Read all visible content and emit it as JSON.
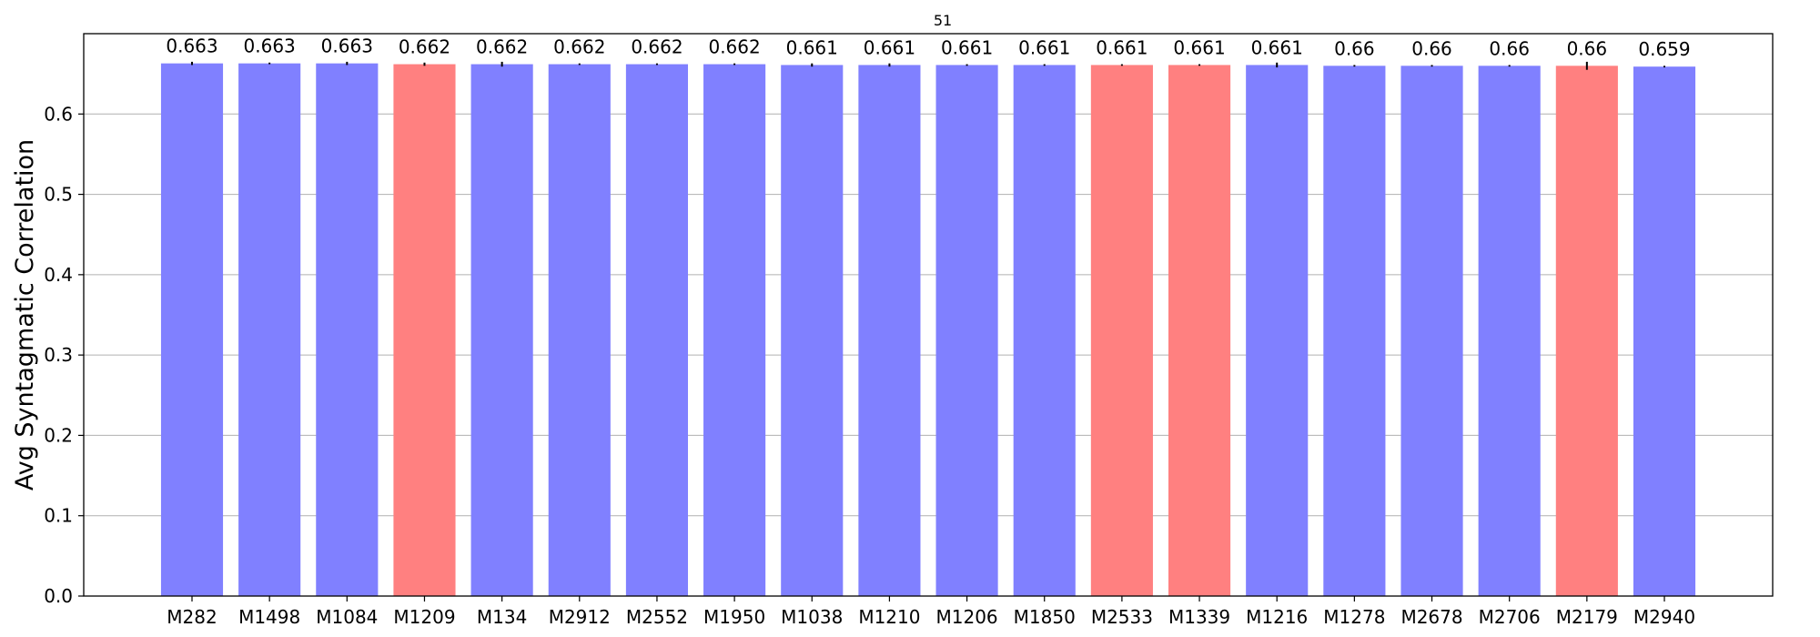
{
  "chart_data": {
    "type": "bar",
    "title": "51",
    "xlabel": "",
    "ylabel": "Avg Syntagmatic Correlation",
    "ylim": [
      0,
      0.7
    ],
    "yticks": [
      "0.0",
      "0.1",
      "0.2",
      "0.3",
      "0.4",
      "0.5",
      "0.6"
    ],
    "grid": "horizontal",
    "colors": {
      "blue": "#8080ff",
      "red": "#ff8080"
    },
    "categories": [
      "M282",
      "M1498",
      "M1084",
      "M1209",
      "M134",
      "M2912",
      "M2552",
      "M1950",
      "M1038",
      "M1210",
      "M1206",
      "M1850",
      "M2533",
      "M1339",
      "M1216",
      "M1278",
      "M2678",
      "M2706",
      "M2179",
      "M2940"
    ],
    "values": [
      0.663,
      0.663,
      0.663,
      0.662,
      0.662,
      0.662,
      0.662,
      0.662,
      0.661,
      0.661,
      0.661,
      0.661,
      0.661,
      0.661,
      0.661,
      0.66,
      0.66,
      0.66,
      0.66,
      0.659
    ],
    "value_labels": [
      "0.663",
      "0.663",
      "0.663",
      "0.662",
      "0.662",
      "0.662",
      "0.662",
      "0.662",
      "0.661",
      "0.661",
      "0.661",
      "0.661",
      "0.661",
      "0.661",
      "0.661",
      "0.66",
      "0.66",
      "0.66",
      "0.66",
      "0.659"
    ],
    "bar_colors": [
      "blue",
      "blue",
      "blue",
      "red",
      "blue",
      "blue",
      "blue",
      "blue",
      "blue",
      "blue",
      "blue",
      "blue",
      "red",
      "red",
      "blue",
      "blue",
      "blue",
      "blue",
      "red",
      "blue"
    ],
    "errors": [
      0.002,
      0.001,
      0.002,
      0.002,
      0.003,
      0.001,
      0.001,
      0.001,
      0.002,
      0.002,
      0.001,
      0.001,
      0.001,
      0.001,
      0.003,
      0.001,
      0.001,
      0.001,
      0.005,
      0.001
    ]
  }
}
